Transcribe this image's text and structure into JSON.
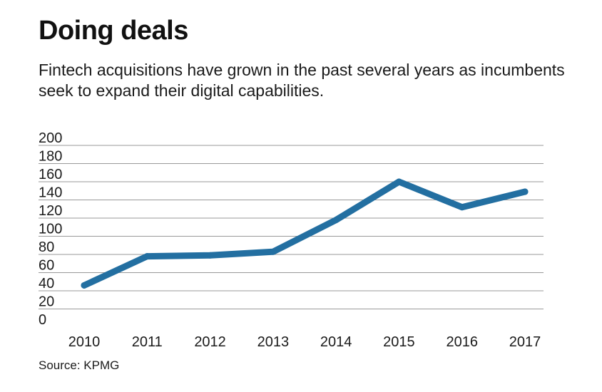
{
  "chart_data": {
    "type": "line",
    "title": "Doing deals",
    "subtitle": "Fintech acquisitions have grown in the past several years as incumbents seek to expand their digital capabilities.",
    "source": "Source: KPMG",
    "xlabel": "",
    "ylabel": "",
    "categories": [
      "2010",
      "2011",
      "2012",
      "2013",
      "2014",
      "2015",
      "2016",
      "2017"
    ],
    "series": [
      {
        "name": "Fintech acquisitions",
        "values": [
          46,
          78,
          79,
          83,
          118,
          160,
          132,
          149
        ]
      }
    ],
    "ylim": [
      0,
      200
    ],
    "yticks": [
      0,
      20,
      40,
      60,
      80,
      100,
      120,
      140,
      160,
      180,
      200
    ],
    "grid": true,
    "line_color": "#236fa1",
    "grid_color": "#999999"
  }
}
